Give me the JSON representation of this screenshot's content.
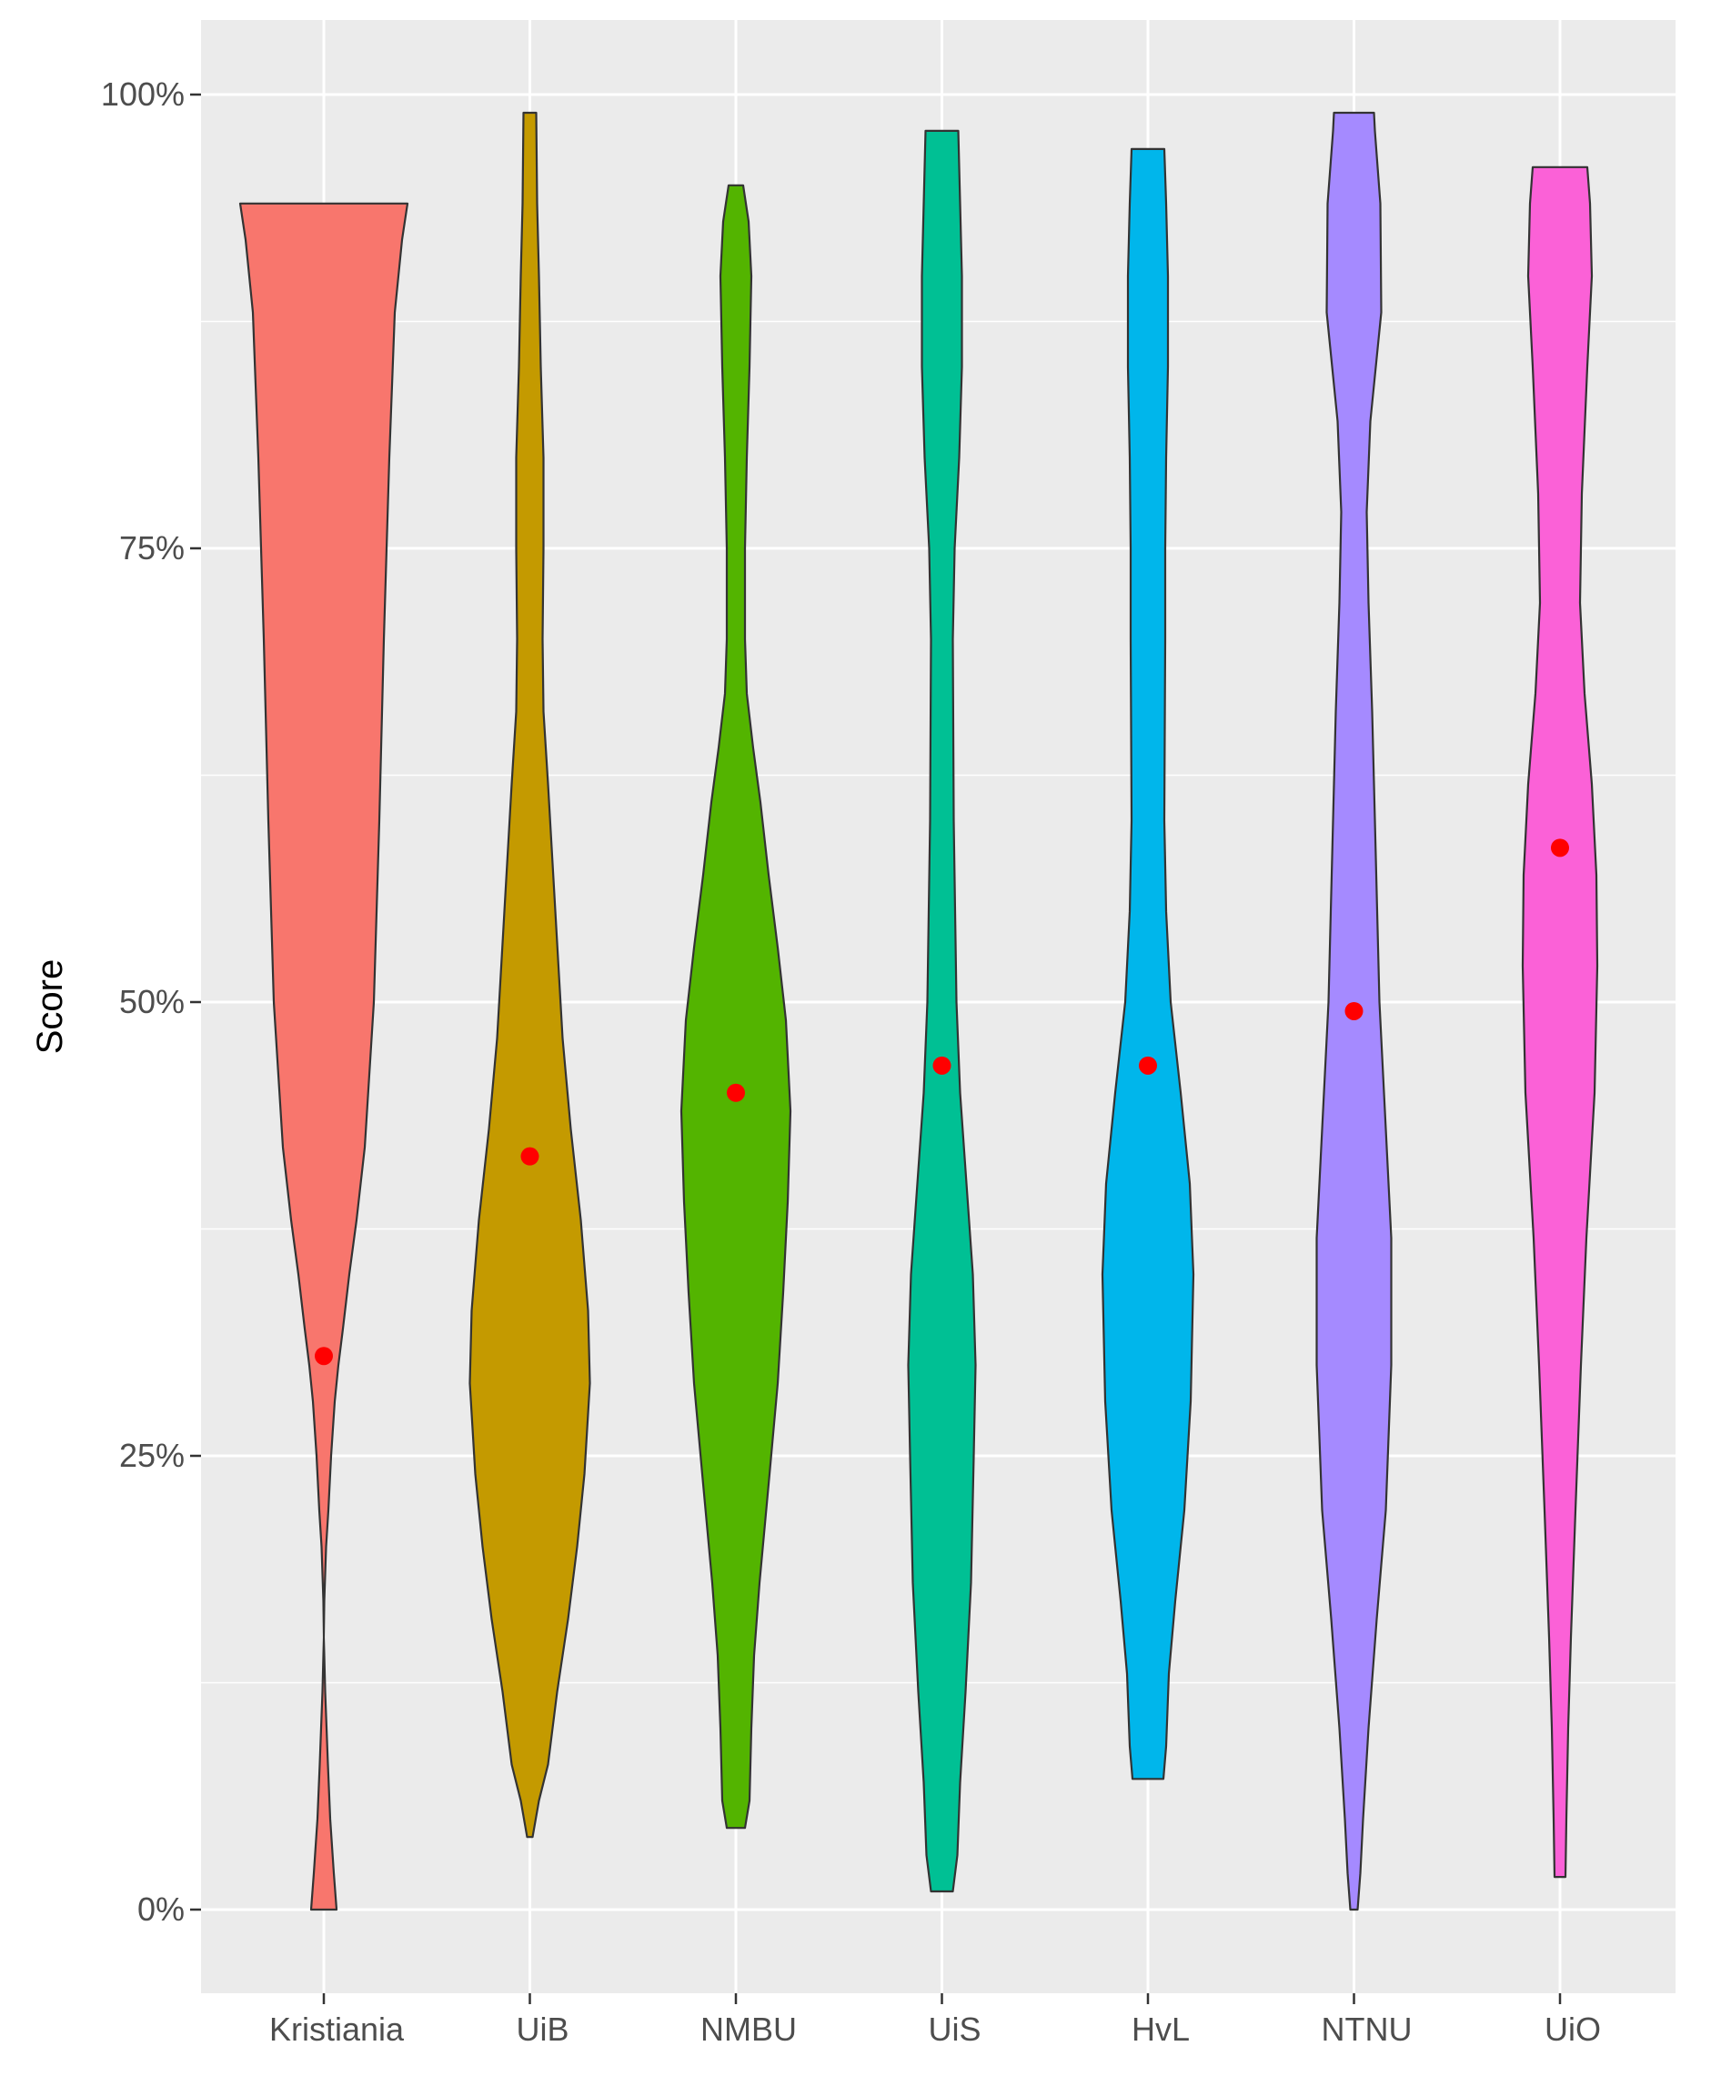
{
  "chart_data": {
    "type": "violin",
    "title": "",
    "xlabel": "",
    "ylabel": "Score",
    "ylim": [
      -0.05,
      1.07
    ],
    "grid": true,
    "legend": "none",
    "y_ticks": [
      {
        "value": 0,
        "label": "0%"
      },
      {
        "value": 0.25,
        "label": "25%"
      },
      {
        "value": 0.5,
        "label": "50%"
      },
      {
        "value": 0.75,
        "label": "75%"
      },
      {
        "value": 1.0,
        "label": "100%"
      }
    ],
    "categories": [
      "Kristiania",
      "UiB",
      "NMBU",
      "UiS",
      "HvL",
      "NTNU",
      "UiO"
    ],
    "mean_marker_color": "#ff0000",
    "series": [
      {
        "label": "Kristiania",
        "color": "#F8766D",
        "mean": 0.305,
        "profile": [
          [
            0,
            0.14
          ],
          [
            0.02,
            0.11
          ],
          [
            0.05,
            0.07
          ],
          [
            0.08,
            0.045
          ],
          [
            0.1,
            0.03
          ],
          [
            0.12,
            0.015
          ],
          [
            0.15,
            0
          ],
          [
            0.17,
            0.005
          ],
          [
            0.2,
            0.025
          ],
          [
            0.22,
            0.05
          ],
          [
            0.25,
            0.08
          ],
          [
            0.28,
            0.12
          ],
          [
            0.3,
            0.16
          ],
          [
            0.32,
            0.21
          ],
          [
            0.35,
            0.28
          ],
          [
            0.38,
            0.36
          ],
          [
            0.42,
            0.45
          ],
          [
            0.5,
            0.55
          ],
          [
            0.6,
            0.61
          ],
          [
            0.7,
            0.66
          ],
          [
            0.8,
            0.72
          ],
          [
            0.88,
            0.78
          ],
          [
            0.92,
            0.86
          ],
          [
            0.94,
            0.92
          ]
        ],
        "profile_note": "width fraction at score"
      },
      {
        "label": "UiB",
        "color": "#C49A00",
        "mean": 0.415,
        "profile": [
          [
            0.04,
            0.03
          ],
          [
            0.06,
            0.1
          ],
          [
            0.08,
            0.2
          ],
          [
            0.12,
            0.3
          ],
          [
            0.16,
            0.42
          ],
          [
            0.2,
            0.52
          ],
          [
            0.24,
            0.6
          ],
          [
            0.29,
            0.66
          ],
          [
            0.33,
            0.64
          ],
          [
            0.38,
            0.56
          ],
          [
            0.43,
            0.45
          ],
          [
            0.48,
            0.36
          ],
          [
            0.55,
            0.28
          ],
          [
            0.62,
            0.2
          ],
          [
            0.66,
            0.15
          ],
          [
            0.7,
            0.14
          ],
          [
            0.75,
            0.15
          ],
          [
            0.8,
            0.15
          ],
          [
            0.85,
            0.12
          ],
          [
            0.9,
            0.1
          ],
          [
            0.94,
            0.08
          ],
          [
            0.99,
            0.07
          ]
        ]
      },
      {
        "label": "NMBU",
        "color": "#53B400",
        "mean": 0.45,
        "profile": [
          [
            0.045,
            0.1
          ],
          [
            0.06,
            0.15
          ],
          [
            0.1,
            0.17
          ],
          [
            0.14,
            0.2
          ],
          [
            0.18,
            0.26
          ],
          [
            0.24,
            0.37
          ],
          [
            0.29,
            0.46
          ],
          [
            0.34,
            0.52
          ],
          [
            0.39,
            0.57
          ],
          [
            0.44,
            0.6
          ],
          [
            0.49,
            0.55
          ],
          [
            0.53,
            0.46
          ],
          [
            0.57,
            0.36
          ],
          [
            0.61,
            0.27
          ],
          [
            0.64,
            0.19
          ],
          [
            0.67,
            0.12
          ],
          [
            0.7,
            0.1
          ],
          [
            0.75,
            0.1
          ],
          [
            0.8,
            0.12
          ],
          [
            0.85,
            0.15
          ],
          [
            0.9,
            0.17
          ],
          [
            0.93,
            0.14
          ],
          [
            0.95,
            0.08
          ]
        ]
      },
      {
        "label": "UiS",
        "color": "#00C094",
        "mean": 0.465,
        "profile": [
          [
            0.01,
            0.12
          ],
          [
            0.03,
            0.17
          ],
          [
            0.07,
            0.2
          ],
          [
            0.12,
            0.26
          ],
          [
            0.18,
            0.32
          ],
          [
            0.25,
            0.35
          ],
          [
            0.3,
            0.37
          ],
          [
            0.35,
            0.34
          ],
          [
            0.4,
            0.27
          ],
          [
            0.45,
            0.2
          ],
          [
            0.5,
            0.16
          ],
          [
            0.6,
            0.13
          ],
          [
            0.7,
            0.12
          ],
          [
            0.75,
            0.14
          ],
          [
            0.8,
            0.19
          ],
          [
            0.85,
            0.22
          ],
          [
            0.9,
            0.22
          ],
          [
            0.94,
            0.2
          ],
          [
            0.98,
            0.18
          ]
        ]
      },
      {
        "label": "HvL",
        "color": "#00B6EB",
        "mean": 0.465,
        "profile": [
          [
            0.072,
            0.17
          ],
          [
            0.09,
            0.2
          ],
          [
            0.13,
            0.23
          ],
          [
            0.17,
            0.3
          ],
          [
            0.22,
            0.4
          ],
          [
            0.28,
            0.47
          ],
          [
            0.35,
            0.5
          ],
          [
            0.4,
            0.46
          ],
          [
            0.45,
            0.36
          ],
          [
            0.5,
            0.25
          ],
          [
            0.55,
            0.2
          ],
          [
            0.6,
            0.18
          ],
          [
            0.7,
            0.19
          ],
          [
            0.75,
            0.19
          ],
          [
            0.8,
            0.2
          ],
          [
            0.85,
            0.22
          ],
          [
            0.9,
            0.22
          ],
          [
            0.94,
            0.2
          ],
          [
            0.97,
            0.18
          ]
        ]
      },
      {
        "label": "NTNU",
        "color": "#A58AFF",
        "mean": 0.495,
        "profile": [
          [
            0,
            0.04
          ],
          [
            0.02,
            0.07
          ],
          [
            0.05,
            0.1
          ],
          [
            0.1,
            0.16
          ],
          [
            0.16,
            0.25
          ],
          [
            0.22,
            0.35
          ],
          [
            0.3,
            0.41
          ],
          [
            0.37,
            0.41
          ],
          [
            0.43,
            0.35
          ],
          [
            0.5,
            0.28
          ],
          [
            0.58,
            0.24
          ],
          [
            0.66,
            0.2
          ],
          [
            0.72,
            0.16
          ],
          [
            0.77,
            0.14
          ],
          [
            0.82,
            0.18
          ],
          [
            0.88,
            0.3
          ],
          [
            0.94,
            0.29
          ],
          [
            0.98,
            0.23
          ],
          [
            0.99,
            0.22
          ]
        ]
      },
      {
        "label": "UiO",
        "color": "#FB61D7",
        "mean": 0.585,
        "profile": [
          [
            0.018,
            0.06
          ],
          [
            0.05,
            0.07
          ],
          [
            0.1,
            0.09
          ],
          [
            0.15,
            0.12
          ],
          [
            0.22,
            0.17
          ],
          [
            0.3,
            0.23
          ],
          [
            0.37,
            0.29
          ],
          [
            0.45,
            0.38
          ],
          [
            0.52,
            0.41
          ],
          [
            0.57,
            0.4
          ],
          [
            0.62,
            0.35
          ],
          [
            0.67,
            0.27
          ],
          [
            0.72,
            0.22
          ],
          [
            0.78,
            0.24
          ],
          [
            0.85,
            0.3
          ],
          [
            0.9,
            0.35
          ],
          [
            0.94,
            0.33
          ],
          [
            0.96,
            0.3
          ]
        ]
      }
    ]
  }
}
